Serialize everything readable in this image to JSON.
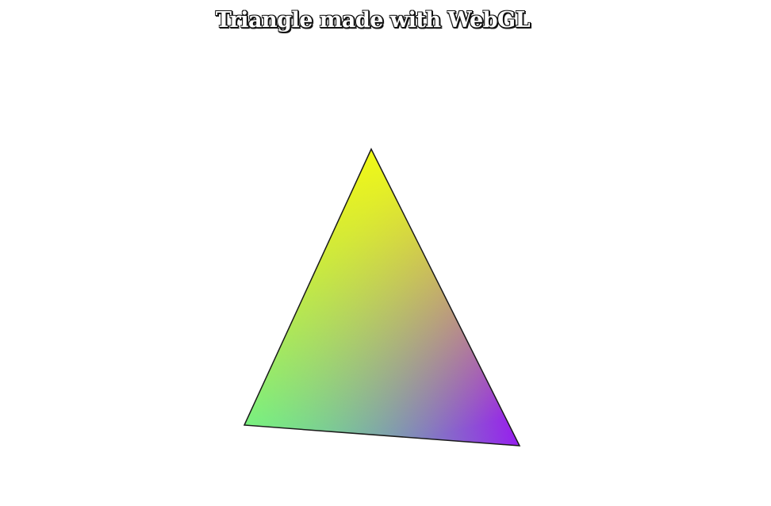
{
  "page": {
    "title": "Triangle made with WebGL"
  },
  "triangle": {
    "vertex_colors": {
      "top": "#f5ff10",
      "bottom_left": "#50ff9a",
      "bottom_right": "#9a10f5"
    },
    "outline_color": "#1a1a1a"
  }
}
